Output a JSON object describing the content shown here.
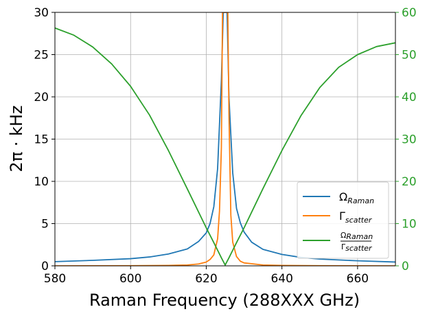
{
  "chart_data": {
    "type": "line",
    "xlabel": "Raman Frequency (288XXX GHz)",
    "ylabel_left": "2π · kHz",
    "xlim": [
      580,
      670
    ],
    "ylim_left": [
      0,
      30
    ],
    "ylim_right": [
      0,
      60
    ],
    "x_ticks": [
      "580",
      "600",
      "620",
      "640",
      "660"
    ],
    "y_ticks_left": [
      "0",
      "5",
      "10",
      "15",
      "20",
      "25",
      "30"
    ],
    "y_ticks_right": [
      "0",
      "10",
      "20",
      "30",
      "40",
      "50",
      "60"
    ],
    "grid": true,
    "legend_position": "lower-right",
    "right_axis_color": "#2ca02c",
    "series": [
      {
        "name": "Ω_Raman",
        "legend_main": "Ω",
        "legend_sub": "Raman",
        "axis": "left",
        "color": "#1f77b4",
        "x": [
          580,
          590,
          600,
          605,
          610,
          615,
          618,
          620,
          621,
          622,
          623,
          624,
          624.5,
          625,
          625.5,
          626,
          627,
          628,
          629,
          630,
          632,
          635,
          640,
          645,
          650,
          660,
          670
        ],
        "y": [
          0.5,
          0.65,
          0.85,
          1.05,
          1.4,
          2.0,
          2.9,
          3.9,
          5.0,
          7.0,
          11.5,
          22.0,
          30,
          30,
          30,
          20.0,
          11.0,
          6.8,
          5.1,
          4.0,
          2.8,
          1.95,
          1.35,
          1.0,
          0.8,
          0.6,
          0.45
        ]
      },
      {
        "name": "Γ_scatter",
        "legend_main": "Γ",
        "legend_sub": "scatter",
        "axis": "left",
        "color": "#ff7f0e",
        "x": [
          580,
          600,
          610,
          615,
          618,
          620,
          621,
          622,
          623,
          623.5,
          624,
          624.3,
          624.6,
          625,
          625.4,
          625.7,
          626,
          626.5,
          627,
          628,
          629,
          630,
          635,
          640,
          650,
          670
        ],
        "y": [
          0.0,
          0.02,
          0.05,
          0.1,
          0.22,
          0.45,
          0.75,
          1.3,
          3.2,
          6.5,
          14.0,
          30,
          30,
          30,
          30,
          30,
          18.0,
          6.0,
          2.8,
          1.1,
          0.55,
          0.35,
          0.1,
          0.05,
          0.02,
          0.0
        ]
      },
      {
        "name": "Ω_Raman / Γ_scatter",
        "legend_num": "Ω",
        "legend_num_sub": "Raman",
        "legend_den": "Γ",
        "legend_den_sub": "scatter",
        "axis": "right",
        "color": "#2ca02c",
        "x": [
          580,
          585,
          590,
          595,
          600,
          605,
          610,
          615,
          620,
          622,
          623,
          624,
          625,
          626,
          627,
          628,
          630,
          635,
          640,
          645,
          650,
          655,
          660,
          665,
          670
        ],
        "y": [
          56.3,
          54.6,
          51.8,
          47.8,
          42.5,
          35.7,
          27.3,
          18.2,
          9.0,
          5.5,
          3.7,
          1.9,
          0.2,
          1.9,
          3.7,
          5.5,
          9.0,
          18.3,
          27.3,
          35.5,
          42.2,
          47.0,
          50.0,
          51.9,
          52.8
        ]
      }
    ]
  }
}
